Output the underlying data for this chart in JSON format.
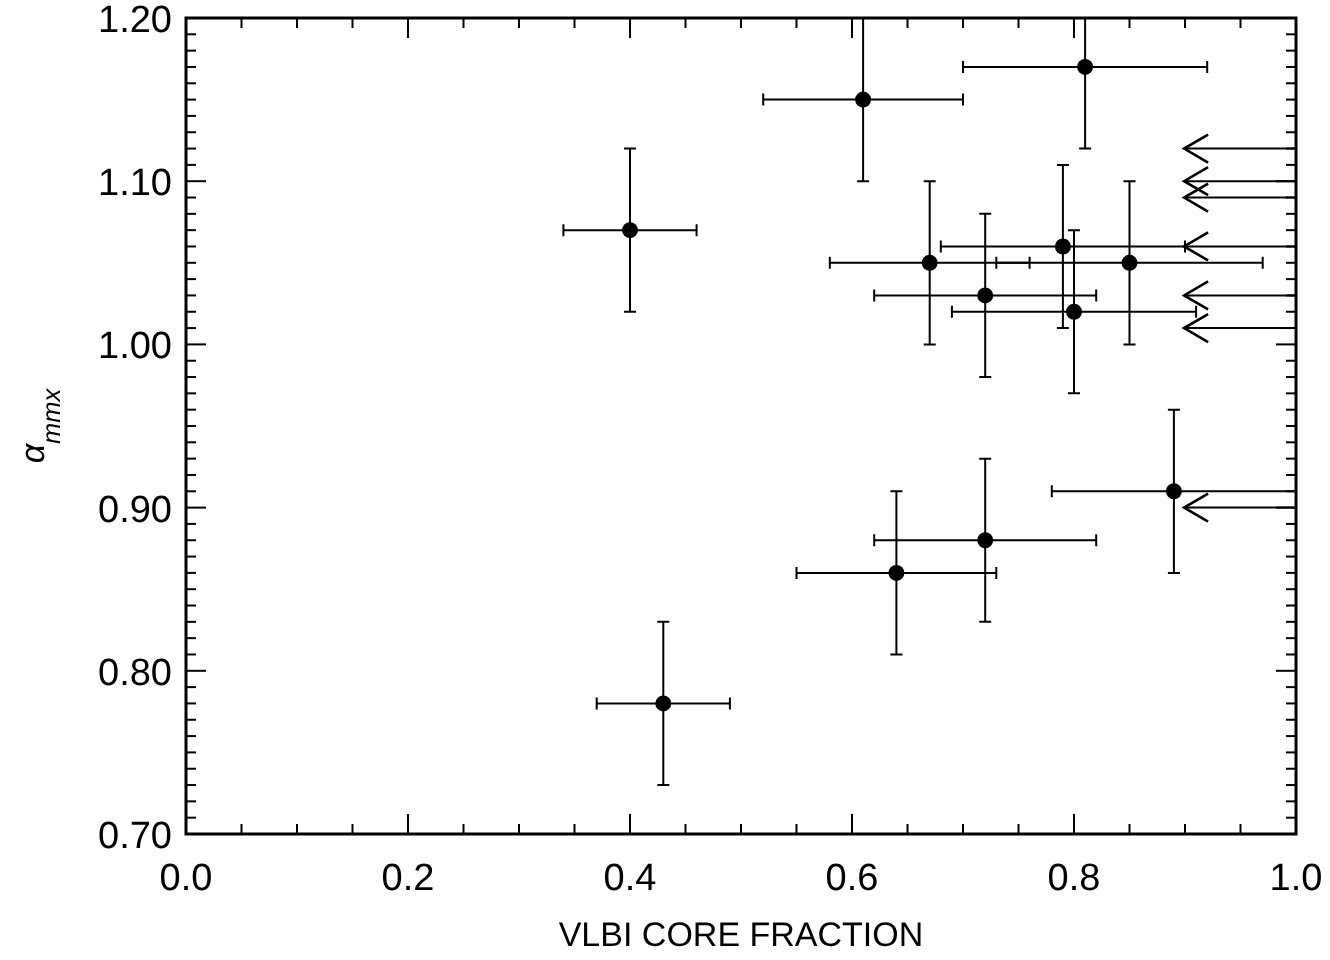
{
  "chart_data": {
    "type": "scatter",
    "xlabel": "VLBI CORE FRACTION",
    "ylabel": "α$_{mmx}$",
    "xlim": [
      0,
      1
    ],
    "ylim": [
      0.7,
      1.2
    ],
    "xticks": [
      {
        "value": 0,
        "label": "0.0"
      },
      {
        "value": 0.05,
        "label": null
      },
      {
        "value": 0.1,
        "label": null
      },
      {
        "value": 0.15,
        "label": null
      },
      {
        "value": 0.2,
        "label": "0.2"
      },
      {
        "value": 0.25,
        "label": null
      },
      {
        "value": 0.3,
        "label": null
      },
      {
        "value": 0.35,
        "label": null
      },
      {
        "value": 0.4,
        "label": "0.4"
      },
      {
        "value": 0.45,
        "label": null
      },
      {
        "value": 0.5,
        "label": null
      },
      {
        "value": 0.55,
        "label": null
      },
      {
        "value": 0.6,
        "label": "0.6"
      },
      {
        "value": 0.65,
        "label": null
      },
      {
        "value": 0.7,
        "label": null
      },
      {
        "value": 0.75,
        "label": null
      },
      {
        "value": 0.8,
        "label": "0.8"
      },
      {
        "value": 0.85,
        "label": null
      },
      {
        "value": 0.9,
        "label": null
      },
      {
        "value": 0.95,
        "label": null
      },
      {
        "value": 1,
        "label": "1.0"
      }
    ],
    "yticks": [
      {
        "value": 0.7,
        "label": "0.70"
      },
      {
        "value": 0.71,
        "label": null
      },
      {
        "value": 0.72,
        "label": null
      },
      {
        "value": 0.73,
        "label": null
      },
      {
        "value": 0.74,
        "label": null
      },
      {
        "value": 0.75,
        "label": null
      },
      {
        "value": 0.76,
        "label": null
      },
      {
        "value": 0.77,
        "label": null
      },
      {
        "value": 0.78,
        "label": null
      },
      {
        "value": 0.79,
        "label": null
      },
      {
        "value": 0.8,
        "label": "0.80"
      },
      {
        "value": 0.81,
        "label": null
      },
      {
        "value": 0.82,
        "label": null
      },
      {
        "value": 0.83,
        "label": null
      },
      {
        "value": 0.84,
        "label": null
      },
      {
        "value": 0.85,
        "label": null
      },
      {
        "value": 0.86,
        "label": null
      },
      {
        "value": 0.87,
        "label": null
      },
      {
        "value": 0.88,
        "label": null
      },
      {
        "value": 0.89,
        "label": null
      },
      {
        "value": 0.9,
        "label": "0.90"
      },
      {
        "value": 0.91,
        "label": null
      },
      {
        "value": 0.92,
        "label": null
      },
      {
        "value": 0.93,
        "label": null
      },
      {
        "value": 0.94,
        "label": null
      },
      {
        "value": 0.95,
        "label": null
      },
      {
        "value": 0.96,
        "label": null
      },
      {
        "value": 0.97,
        "label": null
      },
      {
        "value": 0.98,
        "label": null
      },
      {
        "value": 0.99,
        "label": null
      },
      {
        "value": 1,
        "label": "1.00"
      },
      {
        "value": 1.01,
        "label": null
      },
      {
        "value": 1.02,
        "label": null
      },
      {
        "value": 1.03,
        "label": null
      },
      {
        "value": 1.04,
        "label": null
      },
      {
        "value": 1.05,
        "label": null
      },
      {
        "value": 1.06,
        "label": null
      },
      {
        "value": 1.07,
        "label": null
      },
      {
        "value": 1.08,
        "label": null
      },
      {
        "value": 1.09,
        "label": null
      },
      {
        "value": 1.1,
        "label": "1.10"
      },
      {
        "value": 1.11,
        "label": null
      },
      {
        "value": 1.12,
        "label": null
      },
      {
        "value": 1.13,
        "label": null
      },
      {
        "value": 1.14,
        "label": null
      },
      {
        "value": 1.15,
        "label": null
      },
      {
        "value": 1.16,
        "label": null
      },
      {
        "value": 1.17,
        "label": null
      },
      {
        "value": 1.18,
        "label": null
      },
      {
        "value": 1.19,
        "label": null
      },
      {
        "value": 1.2,
        "label": "1.20"
      }
    ],
    "series": [
      {
        "color": "#000000",
        "marker": "circle",
        "x": [
          0.4,
          0.61,
          0.81,
          0.67,
          0.79,
          0.85,
          0.72,
          0.8,
          0.43,
          0.64,
          0.72,
          0.89
        ],
        "values": [
          1.07,
          1.15,
          1.17,
          1.05,
          1.06,
          1.05,
          1.03,
          1.02,
          0.78,
          0.86,
          0.88,
          0.91
        ],
        "errors": [
          0.05,
          [
            1.1,
            1.2
          ],
          [
            1.12,
            1.2
          ],
          0.05,
          0.05,
          0.05,
          0.05,
          0.05,
          0.05,
          0.05,
          0.05,
          0.05
        ],
        "xerrors": [
          0.06,
          0.09,
          0.11,
          0.09,
          0.11,
          0.12,
          0.1,
          0.11,
          0.06,
          0.09,
          0.1,
          0.11
        ]
      },
      {
        "color": "#000000",
        "x": [
          0.91,
          0.91,
          0.91,
          0.91,
          0.91,
          0.91,
          0.91
        ],
        "values": [
          1.12,
          1.1,
          1.09,
          1.06,
          1.03,
          1.01,
          0.9
        ],
        "xerrors": [
          [
            0.9,
            1.0
          ],
          [
            0.9,
            1.0
          ],
          [
            0.9,
            1.0
          ],
          [
            0.9,
            1.0
          ],
          [
            0.9,
            1.0
          ],
          [
            0.9,
            1.0
          ],
          [
            0.9,
            1.0
          ]
        ]
      }
    ]
  }
}
